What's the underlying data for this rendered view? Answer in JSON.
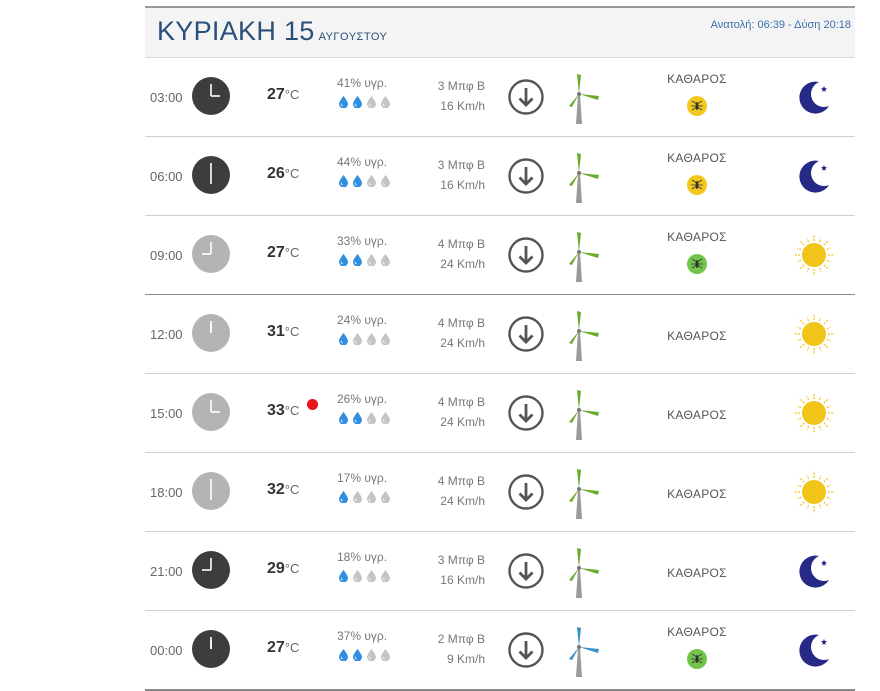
{
  "header": {
    "day_title": "ΚΥΡΙΑΚΗ 15",
    "month": "ΑΥΓΟΥΣΤΟΥ",
    "sun_info": "Ανατολή: 06:39 - Δύση 20:18"
  },
  "colors": {
    "title": "#2a4f7a",
    "drop_filled": "#2f8ee0",
    "drop_empty": "#c4c4c4",
    "moon": "#262a86",
    "sun": "#f0c419",
    "mill_green": "#6aab2e",
    "mill_blue": "#3a8fc9",
    "mosquito_yellow": "#f2c81e",
    "mosquito_green": "#73c44a",
    "hot_dot": "#e8121a"
  },
  "rows": [
    {
      "time": "03:00",
      "clock": "dark",
      "hour": 3,
      "temp": "27",
      "unit": "°C",
      "hot": false,
      "humidity": "41% υγρ.",
      "drops": 2,
      "wind1": "3 Μπφ Β",
      "wind2": "16 Km/h",
      "mill": "green",
      "sky": "ΚΑΘΑΡΟΣ",
      "mosquito": "yellow",
      "icon": "moon-icon"
    },
    {
      "time": "06:00",
      "clock": "dark",
      "hour": 6,
      "temp": "26",
      "unit": "°C",
      "hot": false,
      "humidity": "44% υγρ.",
      "drops": 2,
      "wind1": "3 Μπφ Β",
      "wind2": "16 Km/h",
      "mill": "green",
      "sky": "ΚΑΘΑΡΟΣ",
      "mosquito": "yellow",
      "icon": "moon-icon"
    },
    {
      "time": "09:00",
      "clock": "light",
      "hour": 9,
      "temp": "27",
      "unit": "°C",
      "hot": false,
      "humidity": "33% υγρ.",
      "drops": 2,
      "wind1": "4 Μπφ Β",
      "wind2": "24 Km/h",
      "mill": "green",
      "sky": "ΚΑΘΑΡΟΣ",
      "mosquito": "green",
      "icon": "sun-icon"
    },
    {
      "time": "12:00",
      "clock": "light",
      "hour": 12,
      "temp": "31",
      "unit": "°C",
      "hot": false,
      "humidity": "24% υγρ.",
      "drops": 1,
      "wind1": "4 Μπφ Β",
      "wind2": "24 Km/h",
      "mill": "green",
      "sky": "ΚΑΘΑΡΟΣ",
      "mosquito": "",
      "icon": "sun-icon"
    },
    {
      "time": "15:00",
      "clock": "light",
      "hour": 3,
      "temp": "33",
      "unit": "°C",
      "hot": true,
      "humidity": "26% υγρ.",
      "drops": 2,
      "wind1": "4 Μπφ Β",
      "wind2": "24 Km/h",
      "mill": "green",
      "sky": "ΚΑΘΑΡΟΣ",
      "mosquito": "",
      "icon": "sun-icon"
    },
    {
      "time": "18:00",
      "clock": "light",
      "hour": 6,
      "temp": "32",
      "unit": "°C",
      "hot": false,
      "humidity": "17% υγρ.",
      "drops": 1,
      "wind1": "4 Μπφ Β",
      "wind2": "24 Km/h",
      "mill": "green",
      "sky": "ΚΑΘΑΡΟΣ",
      "mosquito": "",
      "icon": "sun-icon"
    },
    {
      "time": "21:00",
      "clock": "dark",
      "hour": 9,
      "temp": "29",
      "unit": "°C",
      "hot": false,
      "humidity": "18% υγρ.",
      "drops": 1,
      "wind1": "3 Μπφ Β",
      "wind2": "16 Km/h",
      "mill": "green",
      "sky": "ΚΑΘΑΡΟΣ",
      "mosquito": "",
      "icon": "moon-icon"
    },
    {
      "time": "00:00",
      "clock": "dark",
      "hour": 12,
      "temp": "27",
      "unit": "°C",
      "hot": false,
      "humidity": "37% υγρ.",
      "drops": 2,
      "wind1": "2 Μπφ Β",
      "wind2": "9 Km/h",
      "mill": "blue",
      "sky": "ΚΑΘΑΡΟΣ",
      "mosquito": "green",
      "icon": "moon-icon"
    }
  ]
}
